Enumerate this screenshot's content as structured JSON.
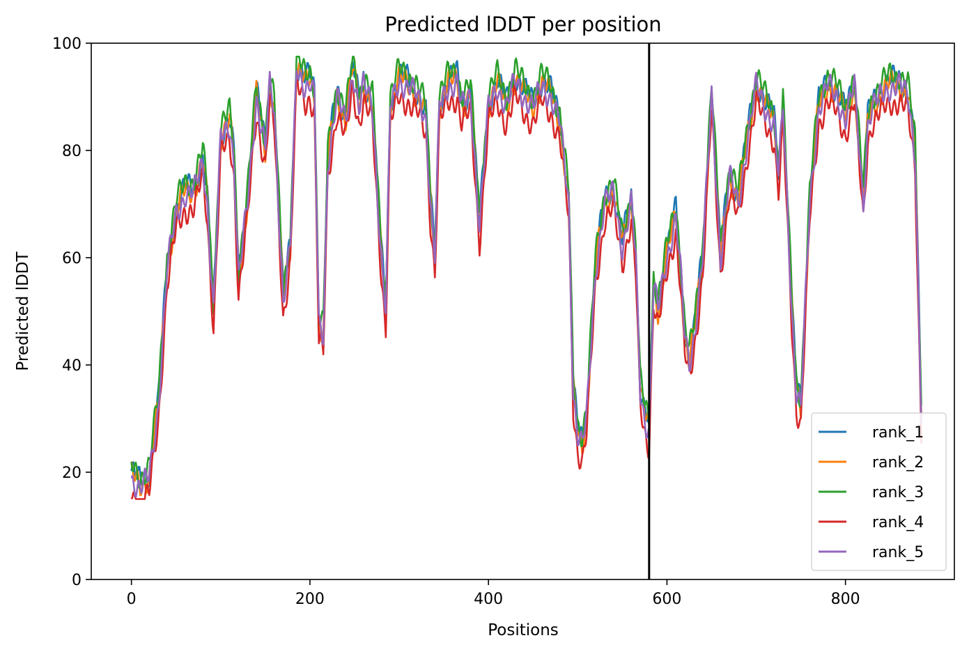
{
  "chart_data": {
    "type": "line",
    "title": "Predicted lDDT per position",
    "xlabel": "Positions",
    "ylabel": "Predicted lDDT",
    "xlim": [
      -45,
      922
    ],
    "ylim": [
      0,
      100
    ],
    "xticks": [
      0,
      200,
      400,
      600,
      800
    ],
    "yticks": [
      0,
      20,
      40,
      60,
      80,
      100
    ],
    "grid": false,
    "legend_position": "bottom-right",
    "separator_x": 580,
    "separator_color": "#000000",
    "series": [
      {
        "name": "rank_1",
        "color": "#1f77b4",
        "offset": 1.2
      },
      {
        "name": "rank_2",
        "color": "#ff7f0e",
        "offset": 0.4
      },
      {
        "name": "rank_3",
        "color": "#2ca02c",
        "offset": 2.2
      },
      {
        "name": "rank_4",
        "color": "#d62728",
        "offset": -3.0
      },
      {
        "name": "rank_5",
        "color": "#9467bd",
        "offset": 0.0
      }
    ],
    "profile": [
      [
        0,
        19
      ],
      [
        10,
        17
      ],
      [
        20,
        19
      ],
      [
        30,
        32
      ],
      [
        40,
        58
      ],
      [
        50,
        68
      ],
      [
        60,
        72
      ],
      [
        70,
        72
      ],
      [
        80,
        78
      ],
      [
        85,
        70
      ],
      [
        92,
        50
      ],
      [
        100,
        82
      ],
      [
        110,
        85
      ],
      [
        115,
        78
      ],
      [
        120,
        56
      ],
      [
        130,
        70
      ],
      [
        140,
        90
      ],
      [
        150,
        80
      ],
      [
        155,
        92
      ],
      [
        160,
        87
      ],
      [
        170,
        52
      ],
      [
        178,
        62
      ],
      [
        185,
        95
      ],
      [
        195,
        92
      ],
      [
        200,
        93
      ],
      [
        205,
        90
      ],
      [
        210,
        47
      ],
      [
        215,
        45
      ],
      [
        220,
        78
      ],
      [
        230,
        90
      ],
      [
        240,
        85
      ],
      [
        248,
        95
      ],
      [
        255,
        88
      ],
      [
        260,
        92
      ],
      [
        270,
        88
      ],
      [
        280,
        60
      ],
      [
        285,
        50
      ],
      [
        290,
        88
      ],
      [
        300,
        93
      ],
      [
        310,
        92
      ],
      [
        320,
        90
      ],
      [
        330,
        86
      ],
      [
        335,
        70
      ],
      [
        340,
        60
      ],
      [
        345,
        88
      ],
      [
        355,
        92
      ],
      [
        365,
        93
      ],
      [
        370,
        88
      ],
      [
        380,
        90
      ],
      [
        390,
        66
      ],
      [
        400,
        88
      ],
      [
        410,
        92
      ],
      [
        420,
        88
      ],
      [
        430,
        93
      ],
      [
        440,
        90
      ],
      [
        450,
        88
      ],
      [
        460,
        92
      ],
      [
        470,
        90
      ],
      [
        480,
        85
      ],
      [
        490,
        70
      ],
      [
        495,
        35
      ],
      [
        500,
        27
      ],
      [
        505,
        25
      ],
      [
        510,
        30
      ],
      [
        520,
        58
      ],
      [
        530,
        70
      ],
      [
        540,
        72
      ],
      [
        550,
        62
      ],
      [
        560,
        70
      ],
      [
        565,
        60
      ],
      [
        570,
        35
      ],
      [
        575,
        30
      ],
      [
        580,
        28
      ],
      [
        585,
        55
      ],
      [
        590,
        50
      ],
      [
        600,
        60
      ],
      [
        610,
        68
      ],
      [
        615,
        58
      ],
      [
        620,
        45
      ],
      [
        625,
        40
      ],
      [
        630,
        45
      ],
      [
        640,
        60
      ],
      [
        650,
        90
      ],
      [
        660,
        60
      ],
      [
        670,
        75
      ],
      [
        680,
        70
      ],
      [
        690,
        82
      ],
      [
        700,
        92
      ],
      [
        710,
        88
      ],
      [
        720,
        85
      ],
      [
        725,
        75
      ],
      [
        730,
        88
      ],
      [
        740,
        50
      ],
      [
        745,
        35
      ],
      [
        750,
        32
      ],
      [
        760,
        70
      ],
      [
        770,
        88
      ],
      [
        780,
        92
      ],
      [
        790,
        90
      ],
      [
        800,
        86
      ],
      [
        810,
        92
      ],
      [
        820,
        70
      ],
      [
        825,
        85
      ],
      [
        830,
        88
      ],
      [
        840,
        90
      ],
      [
        850,
        92
      ],
      [
        860,
        92
      ],
      [
        870,
        90
      ],
      [
        878,
        80
      ],
      [
        885,
        30
      ]
    ]
  },
  "legend": {
    "items": [
      "rank_1",
      "rank_2",
      "rank_3",
      "rank_4",
      "rank_5"
    ]
  }
}
